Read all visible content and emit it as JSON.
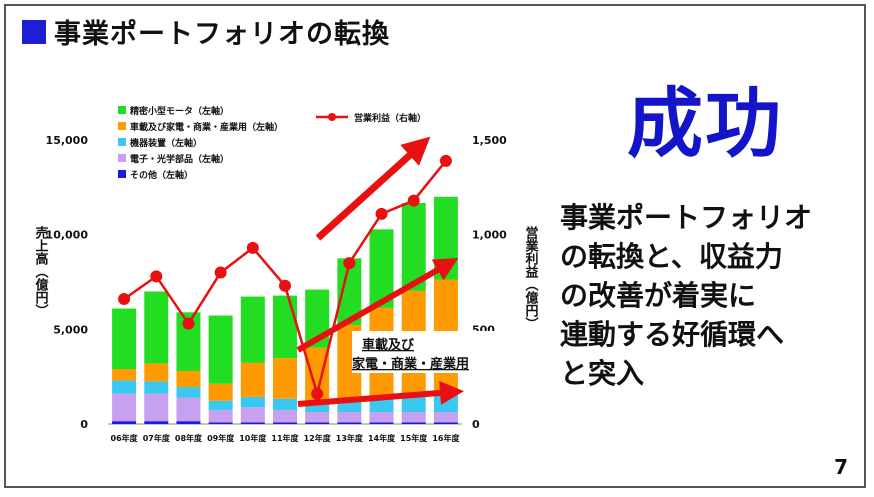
{
  "title": "事業ポートフォリオの転換",
  "headline": "成功",
  "description_lines": [
    "事業ポートフォリオ",
    "の転換と、収益力",
    "の改善が着実に",
    "連動する好循環へ",
    "と突入"
  ],
  "page_number": "7",
  "colors": {
    "title_square": "#1e1ed6",
    "headline": "#1414c8",
    "arrows": "#e81010"
  },
  "chart_data": {
    "type": "bar",
    "categories": [
      "06年度",
      "07年度",
      "08年度",
      "09年度",
      "10年度",
      "11年度",
      "12年度",
      "13年度",
      "14年度",
      "15年度",
      "16年度"
    ],
    "stacked": true,
    "series": [
      {
        "name": "その他（左軸）",
        "color": "#1a1ae0",
        "values": [
          150,
          150,
          150,
          80,
          80,
          80,
          80,
          80,
          80,
          80,
          80
        ]
      },
      {
        "name": "電子・光学部品（左軸）",
        "color": "#c8a0f0",
        "values": [
          1450,
          1450,
          1250,
          650,
          800,
          650,
          550,
          550,
          550,
          550,
          550
        ]
      },
      {
        "name": "機器装置（左軸）",
        "color": "#3ac8f0",
        "values": [
          700,
          650,
          550,
          500,
          550,
          600,
          600,
          700,
          700,
          800,
          900
        ]
      },
      {
        "name": "車載及び家電・商業・産業用（左軸）",
        "color": "#ff9a00",
        "values": [
          600,
          950,
          850,
          900,
          1800,
          2150,
          2800,
          3900,
          4800,
          5600,
          6100
        ]
      },
      {
        "name": "精密小型モータ（左軸）",
        "color": "#22dd22",
        "values": [
          3200,
          3800,
          3100,
          3600,
          3500,
          3300,
          3070,
          3520,
          4150,
          4640,
          4370
        ]
      }
    ],
    "line_series": {
      "name": "営業利益（右軸）",
      "color": "#e81010",
      "values": [
        660,
        780,
        530,
        800,
        930,
        730,
        160,
        850,
        1110,
        1180,
        1390
      ]
    },
    "ylabel": "売上高（億円）",
    "y2label": "営業利益（億円）",
    "ylim": [
      0,
      15000
    ],
    "y2lim": [
      0,
      1500
    ],
    "yticks": [
      "0",
      "5,000",
      "10,000",
      "15,000"
    ],
    "y2ticks": [
      "0",
      "500",
      "1,000",
      "1,500"
    ],
    "annotation_lines": [
      "車載及び",
      "家電・商業・産業用"
    ],
    "legend_position": "top"
  }
}
